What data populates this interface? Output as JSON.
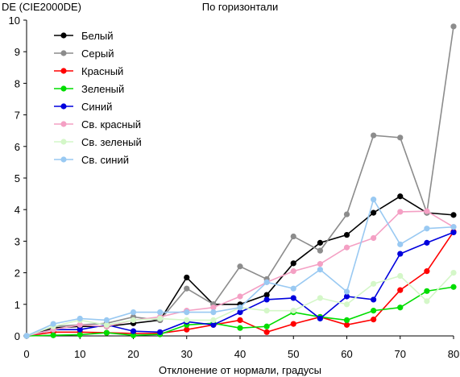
{
  "chart_data": {
    "type": "line",
    "title": "По горизонтали",
    "ylabel": "DE (CIE2000DE)",
    "xlabel": "Отклонение от нормали, градусы",
    "xlim": [
      0,
      80
    ],
    "ylim": [
      0,
      10
    ],
    "xticks": [
      0,
      10,
      20,
      30,
      40,
      50,
      60,
      70,
      80
    ],
    "yticks": [
      0,
      1,
      2,
      3,
      4,
      5,
      6,
      7,
      8,
      9,
      10
    ],
    "grid": false,
    "legend": "top-left",
    "x": [
      0,
      5,
      10,
      15,
      20,
      25,
      30,
      35,
      40,
      45,
      50,
      55,
      60,
      65,
      70,
      75,
      80
    ],
    "series": [
      {
        "name": "Белый",
        "color": "#000000",
        "values": [
          0,
          0.25,
          0.3,
          0.3,
          0.4,
          0.5,
          1.85,
          1.0,
          1.0,
          1.3,
          2.3,
          2.95,
          3.2,
          3.9,
          4.42,
          3.9,
          3.83
        ]
      },
      {
        "name": "Серый",
        "color": "#8c8c8c",
        "values": [
          0,
          0.3,
          0.35,
          0.4,
          0.6,
          0.5,
          1.5,
          1.0,
          2.2,
          1.8,
          3.15,
          2.7,
          3.85,
          6.35,
          6.28,
          3.9,
          9.8
        ]
      },
      {
        "name": "Красный",
        "color": "#ff0000",
        "values": [
          0,
          0.12,
          0.12,
          0.1,
          0.08,
          0.08,
          0.2,
          0.35,
          0.5,
          0.12,
          0.38,
          0.6,
          0.35,
          0.52,
          1.45,
          2.05,
          3.3
        ]
      },
      {
        "name": "Зеленый",
        "color": "#00dd00",
        "values": [
          0,
          0.02,
          0.04,
          0.1,
          0.02,
          0.05,
          0.35,
          0.4,
          0.25,
          0.3,
          0.75,
          0.6,
          0.5,
          0.8,
          0.9,
          1.42,
          1.55
        ]
      },
      {
        "name": "Синий",
        "color": "#0000dd",
        "values": [
          0,
          0.2,
          0.2,
          0.35,
          0.15,
          0.12,
          0.45,
          0.35,
          0.75,
          1.15,
          1.2,
          0.55,
          1.25,
          1.15,
          2.6,
          2.95,
          3.28
        ]
      },
      {
        "name": "Св. красный",
        "color": "#f4a0c4",
        "values": [
          0,
          0.2,
          0.35,
          0.3,
          0.5,
          0.6,
          0.8,
          0.9,
          1.25,
          1.7,
          2.05,
          2.28,
          2.8,
          3.1,
          3.93,
          3.95,
          3.45
        ]
      },
      {
        "name": "Св. зеленый",
        "color": "#d4f7c8",
        "values": [
          0,
          0.3,
          0.5,
          0.35,
          0.5,
          0.55,
          0.5,
          0.5,
          0.9,
          0.8,
          0.8,
          1.2,
          1.0,
          1.65,
          1.9,
          1.1,
          2.0
        ]
      },
      {
        "name": "Св. синий",
        "color": "#99c9f2",
        "values": [
          0,
          0.38,
          0.55,
          0.5,
          0.75,
          0.75,
          0.75,
          0.75,
          0.9,
          1.7,
          1.5,
          2.1,
          1.4,
          4.32,
          2.9,
          3.4,
          3.45
        ]
      }
    ]
  }
}
